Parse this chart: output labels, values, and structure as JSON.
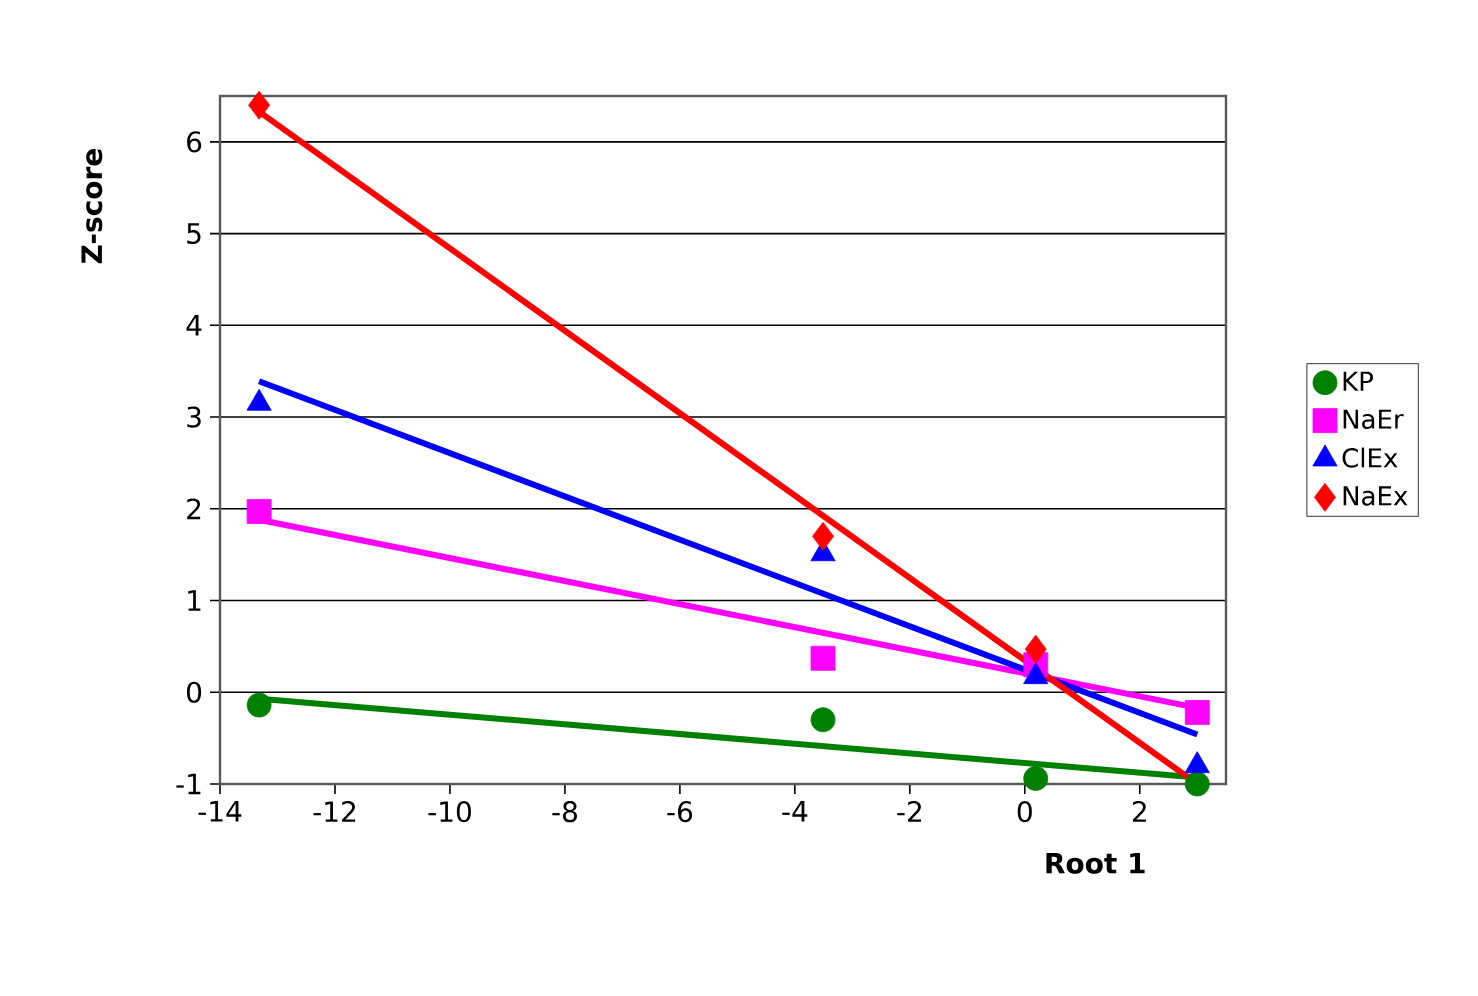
{
  "chart_data": {
    "type": "scatter",
    "xlabel": "Root 1",
    "ylabel": "Z-score",
    "xlim": [
      -14,
      3.5
    ],
    "ylim": [
      -1,
      6.5
    ],
    "xticks": [
      -14,
      -12,
      -10,
      -8,
      -6,
      -4,
      -2,
      0,
      2
    ],
    "yticks": [
      -1,
      0,
      1,
      2,
      3,
      4,
      5,
      6
    ],
    "grid": "y",
    "legend": "right",
    "series": [
      {
        "name": "KP",
        "color": "#008000",
        "marker": "circle",
        "x": [
          -13.32,
          -3.51,
          0.19,
          3.0
        ],
        "values": [
          -0.14,
          -0.3,
          -0.94,
          -1.0
        ]
      },
      {
        "name": "NaEr",
        "color": "#ff00ff",
        "marker": "square",
        "x": [
          -13.32,
          -3.51,
          0.19,
          3.0
        ],
        "values": [
          1.97,
          0.37,
          0.3,
          -0.22
        ]
      },
      {
        "name": "ClEx",
        "color": "#0000ff",
        "marker": "triangle",
        "x": [
          -13.32,
          -3.51,
          0.19,
          3.0
        ],
        "values": [
          3.15,
          1.51,
          0.17,
          -0.8
        ]
      },
      {
        "name": "NaEx",
        "color": "#ff0000",
        "marker": "diamond",
        "x": [
          -13.32,
          -3.51,
          0.19
        ],
        "values": [
          6.4,
          1.7,
          0.47
        ]
      },
      {
        "type": "line",
        "color": "#008000",
        "marker": "none",
        "line_style": "solid",
        "x": [
          -13.32,
          3.0
        ],
        "values": [
          -0.07,
          -0.93
        ]
      },
      {
        "type": "line",
        "color": "#ff00ff",
        "marker": "none",
        "line_style": "solid",
        "x": [
          -13.32,
          3.0
        ],
        "values": [
          1.88,
          -0.17
        ]
      },
      {
        "type": "line",
        "color": "#0000ff",
        "marker": "none",
        "line_style": "solid",
        "x": [
          -13.32,
          3.0
        ],
        "values": [
          3.39,
          -0.46
        ]
      },
      {
        "type": "line",
        "color": "#ff0000",
        "marker": "none",
        "line_style": "solid",
        "x": [
          -13.32,
          3.0
        ],
        "values": [
          6.33,
          -1.0
        ]
      }
    ]
  }
}
